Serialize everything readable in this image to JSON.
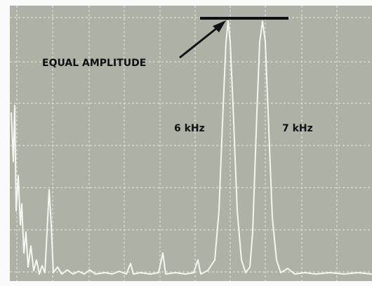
{
  "annotations": {
    "arrow_label": "EQUAL AMPLITUDE",
    "peak_labels": [
      "6 kHz",
      "7 kHz"
    ]
  }
}
